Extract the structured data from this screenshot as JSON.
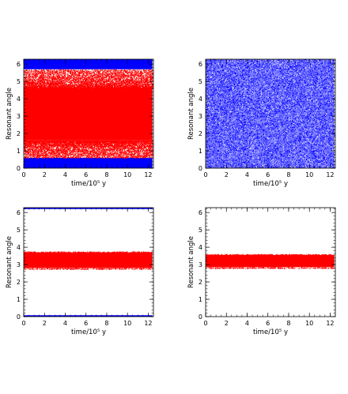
{
  "chart_data": [
    {
      "type": "scatter",
      "xlabel": "time/10⁵ y",
      "ylabel": "Resonant angle",
      "xlim": [
        0,
        12.5
      ],
      "ylim": [
        0,
        6.28
      ],
      "xticks": [
        "0",
        "2",
        "4",
        "6",
        "8",
        "10",
        "12"
      ],
      "yticks": [
        "0",
        "1",
        "2",
        "3",
        "4",
        "5",
        "6"
      ],
      "series": [
        {
          "color": "#0000ff",
          "distribution": "uniform",
          "band": [
            0,
            6.28
          ]
        },
        {
          "color": "#ff0000",
          "distribution": "dense-core",
          "band": [
            0.6,
            5.7
          ],
          "core": [
            1.6,
            4.6
          ]
        }
      ]
    },
    {
      "type": "scatter",
      "xlabel": "time/10⁵ y",
      "ylabel": "Resonant angle",
      "xlim": [
        0,
        12.5
      ],
      "ylim": [
        0,
        6.28
      ],
      "xticks": [
        "0",
        "2",
        "4",
        "6",
        "8",
        "10",
        "12"
      ],
      "yticks": [
        "0",
        "1",
        "2",
        "3",
        "4",
        "5",
        "6"
      ],
      "series": [
        {
          "color": "#0000ff",
          "distribution": "uniform",
          "band": [
            0,
            6.28
          ]
        }
      ]
    },
    {
      "type": "scatter",
      "xlabel": "time/10⁵ y",
      "ylabel": "Resonant angle",
      "xlim": [
        0,
        12.5
      ],
      "ylim": [
        0,
        6.28
      ],
      "xticks": [
        "0",
        "2",
        "4",
        "6",
        "8",
        "10",
        "12"
      ],
      "yticks": [
        "0",
        "1",
        "2",
        "3",
        "4",
        "5",
        "6"
      ],
      "series": [
        {
          "color": "#0000ff",
          "distribution": "edges",
          "band": [
            0,
            6.28
          ],
          "edge_width": 0.08
        },
        {
          "color": "#ff0000",
          "distribution": "band",
          "band": [
            2.8,
            3.7
          ]
        }
      ]
    },
    {
      "type": "scatter",
      "xlabel": "time/10⁵ y",
      "ylabel": "Resonant angle",
      "xlim": [
        0,
        12.5
      ],
      "ylim": [
        0,
        6.28
      ],
      "xticks": [
        "0",
        "2",
        "4",
        "6",
        "8",
        "10",
        "12"
      ],
      "yticks": [
        "0",
        "1",
        "2",
        "3",
        "4",
        "5",
        "6"
      ],
      "series": [
        {
          "color": "#ff0000",
          "distribution": "band",
          "band": [
            2.85,
            3.55
          ]
        }
      ]
    }
  ]
}
